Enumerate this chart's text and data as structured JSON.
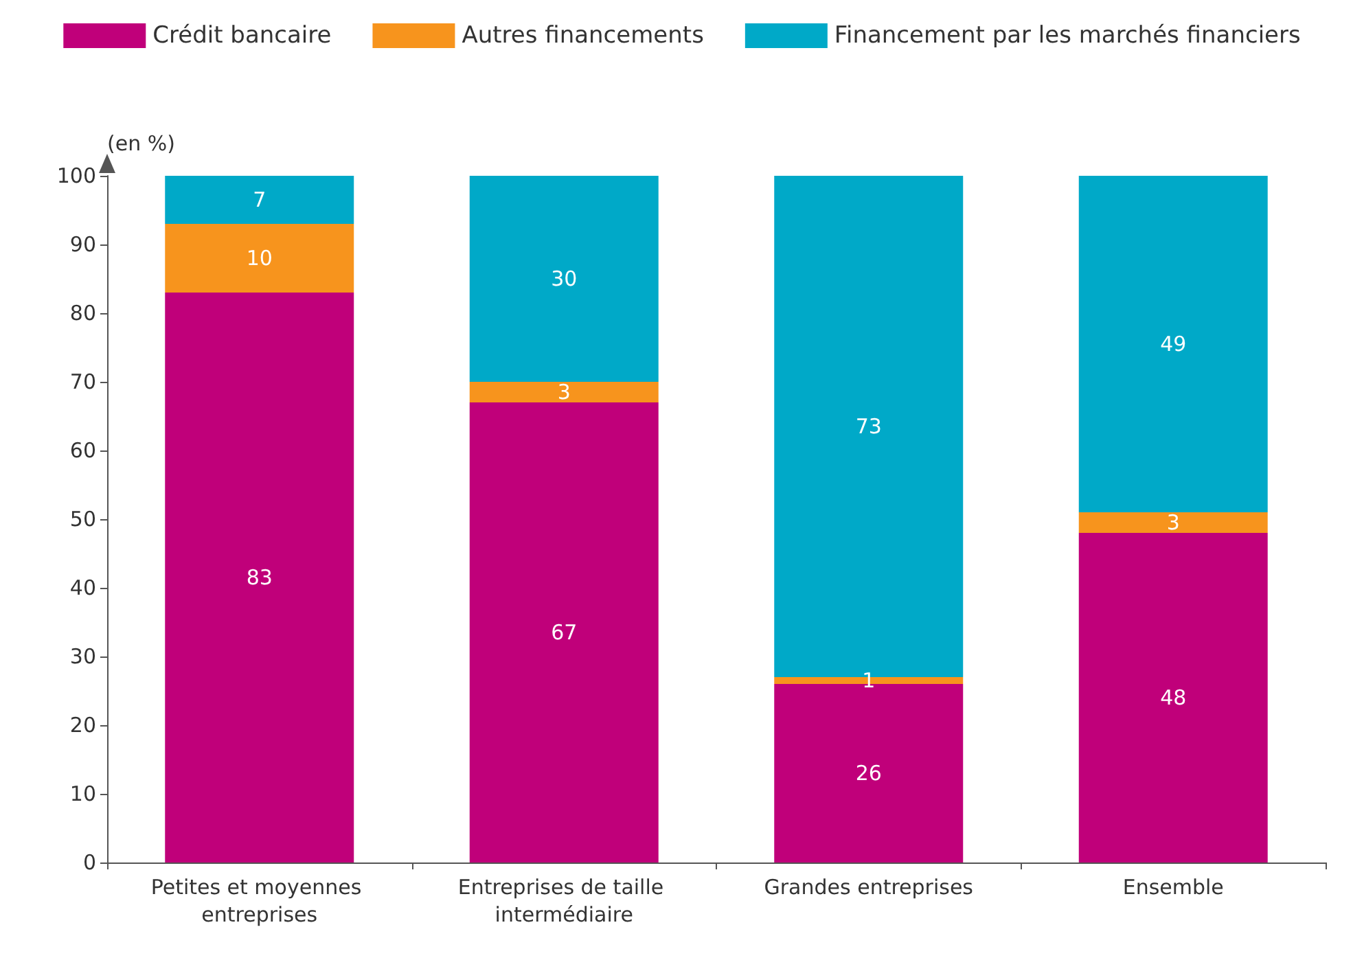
{
  "chart_data": {
    "type": "bar",
    "stacked": true,
    "ylabel": "(en %)",
    "categories": [
      "Petites et moyennes entreprises",
      "Entreprises de taille intermédiaire",
      "Grandes entreprises",
      "Ensemble"
    ],
    "series": [
      {
        "name": "Crédit bancaire",
        "color": "#c0007a",
        "values": [
          83,
          67,
          26,
          48
        ]
      },
      {
        "name": "Autres financements",
        "color": "#f7941d",
        "values": [
          10,
          3,
          1,
          3
        ]
      },
      {
        "name": "Financement par les marchés financiers",
        "color": "#00a9c8",
        "values": [
          7,
          30,
          73,
          49
        ]
      }
    ],
    "ylim": [
      0,
      100
    ],
    "yticks": [
      0,
      10,
      20,
      30,
      40,
      50,
      60,
      70,
      80,
      90,
      100
    ],
    "grid": false,
    "legend": "top",
    "data_labels": true
  }
}
